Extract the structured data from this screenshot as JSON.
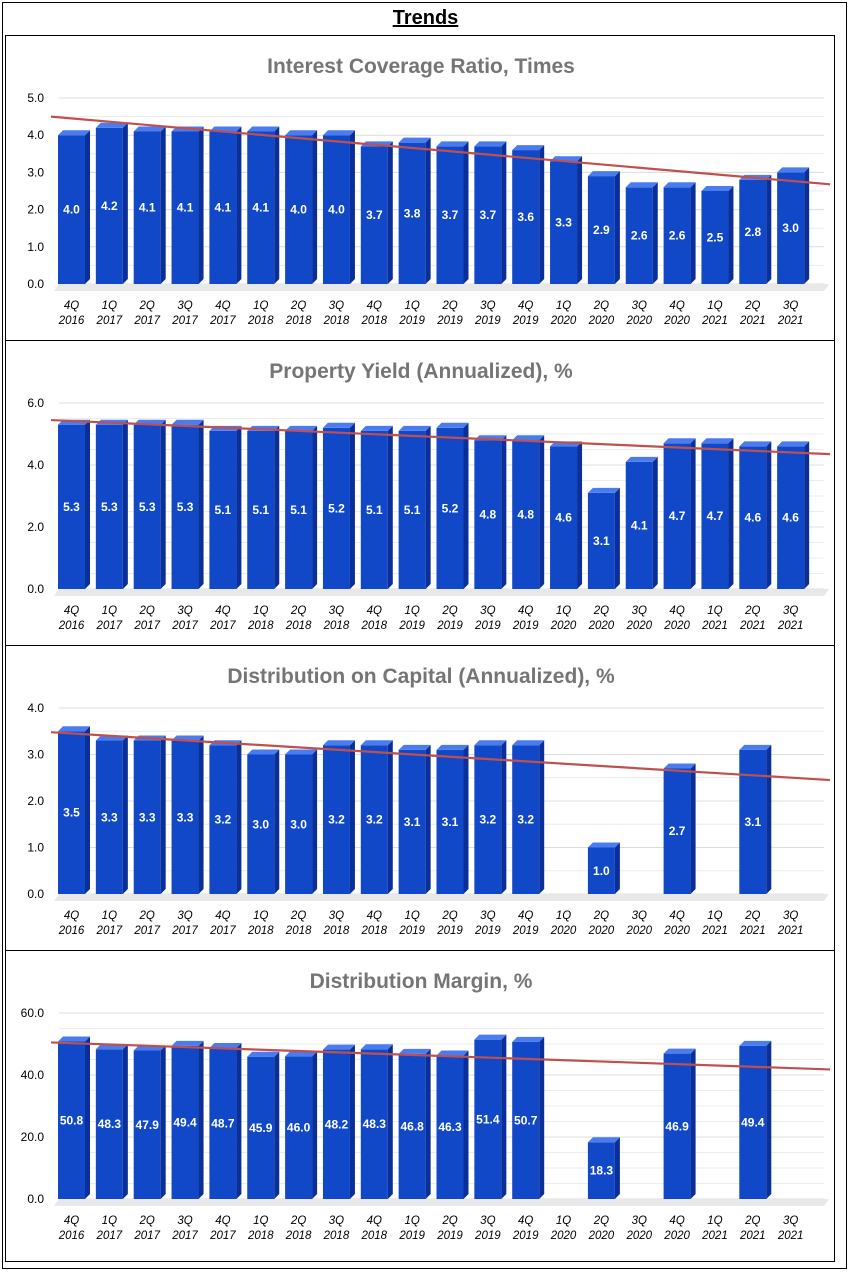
{
  "page_title": "Trends",
  "colors": {
    "bar_front": "#1148c8",
    "bar_side": "#0a2f99",
    "bar_top": "#4a7cf0",
    "trendline": "#c0504d",
    "grid": "#dcdcdc",
    "title": "#757575"
  },
  "chart_data": [
    {
      "type": "bar",
      "title": "Interest Coverage Ratio, Times",
      "categories": [
        "4Q 2016",
        "1Q 2017",
        "2Q 2017",
        "3Q 2017",
        "4Q 2017",
        "1Q 2018",
        "2Q 2018",
        "3Q 2018",
        "4Q 2018",
        "1Q 2019",
        "2Q 2019",
        "3Q 2019",
        "4Q 2019",
        "1Q 2020",
        "2Q 2020",
        "3Q 2020",
        "4Q 2020",
        "1Q 2021",
        "2Q 2021",
        "3Q 2021"
      ],
      "values": [
        4.0,
        4.2,
        4.1,
        4.1,
        4.1,
        4.1,
        4.0,
        4.0,
        3.7,
        3.8,
        3.7,
        3.7,
        3.6,
        3.3,
        2.9,
        2.6,
        2.6,
        2.5,
        2.8,
        3.0
      ],
      "labels": [
        "4.0",
        "4.2",
        "4.1",
        "4.1",
        "4.1",
        "4.1",
        "4.0",
        "4.0",
        "3.7",
        "3.8",
        "3.7",
        "3.7",
        "3.6",
        "3.3",
        "2.9",
        "2.6",
        "2.6",
        "2.5",
        "2.8",
        "3.0"
      ],
      "ylim": [
        0,
        5
      ],
      "yticks": [
        "0.0",
        "1.0",
        "2.0",
        "3.0",
        "4.0",
        "5.0"
      ],
      "trendline": {
        "start": 4.5,
        "end": 2.68
      },
      "grid": true
    },
    {
      "type": "bar",
      "title": "Property Yield (Annualized), %",
      "categories": [
        "4Q 2016",
        "1Q 2017",
        "2Q 2017",
        "3Q 2017",
        "4Q 2017",
        "1Q 2018",
        "2Q 2018",
        "3Q 2018",
        "4Q 2018",
        "1Q 2019",
        "2Q 2019",
        "3Q 2019",
        "4Q 2019",
        "1Q 2020",
        "2Q 2020",
        "3Q 2020",
        "4Q 2020",
        "1Q 2021",
        "2Q 2021",
        "3Q 2021"
      ],
      "values": [
        5.3,
        5.3,
        5.3,
        5.3,
        5.1,
        5.1,
        5.1,
        5.2,
        5.1,
        5.1,
        5.2,
        4.8,
        4.8,
        4.6,
        3.1,
        4.1,
        4.7,
        4.7,
        4.6,
        4.6
      ],
      "labels": [
        "5.3",
        "5.3",
        "5.3",
        "5.3",
        "5.1",
        "5.1",
        "5.1",
        "5.2",
        "5.1",
        "5.1",
        "5.2",
        "4.8",
        "4.8",
        "4.6",
        "3.1",
        "4.1",
        "4.7",
        "4.7",
        "4.6",
        "4.6"
      ],
      "ylim": [
        0,
        6
      ],
      "yticks": [
        "0.0",
        "2.0",
        "4.0",
        "6.0"
      ],
      "trendline": {
        "start": 5.45,
        "end": 4.35
      },
      "grid": true
    },
    {
      "type": "bar",
      "title": "Distribution on Capital (Annualized), %",
      "categories": [
        "4Q 2016",
        "1Q 2017",
        "2Q 2017",
        "3Q 2017",
        "4Q 2017",
        "1Q 2018",
        "2Q 2018",
        "3Q 2018",
        "4Q 2018",
        "1Q 2019",
        "2Q 2019",
        "3Q 2019",
        "4Q 2019",
        "1Q 2020",
        "2Q 2020",
        "3Q 2020",
        "4Q 2020",
        "1Q 2021",
        "2Q 2021",
        "3Q 2021"
      ],
      "values": [
        3.5,
        3.3,
        3.3,
        3.3,
        3.2,
        3.0,
        3.0,
        3.2,
        3.2,
        3.1,
        3.1,
        3.2,
        3.2,
        null,
        1.0,
        null,
        2.7,
        null,
        3.1,
        null
      ],
      "labels": [
        "3.5",
        "3.3",
        "3.3",
        "3.3",
        "3.2",
        "3.0",
        "3.0",
        "3.2",
        "3.2",
        "3.1",
        "3.1",
        "3.2",
        "3.2",
        "",
        "1.0",
        "",
        "2.7",
        "",
        "3.1",
        ""
      ],
      "ylim": [
        0,
        4
      ],
      "yticks": [
        "0.0",
        "1.0",
        "2.0",
        "3.0",
        "4.0"
      ],
      "trendline": {
        "start": 3.48,
        "end": 2.45
      },
      "grid": true
    },
    {
      "type": "bar",
      "title": "Distribution Margin, %",
      "categories": [
        "4Q 2016",
        "1Q 2017",
        "2Q 2017",
        "3Q 2017",
        "4Q 2017",
        "1Q 2018",
        "2Q 2018",
        "3Q 2018",
        "4Q 2018",
        "1Q 2019",
        "2Q 2019",
        "3Q 2019",
        "4Q 2019",
        "1Q 2020",
        "2Q 2020",
        "3Q 2020",
        "4Q 2020",
        "1Q 2021",
        "2Q 2021",
        "3Q 2021"
      ],
      "values": [
        50.8,
        48.3,
        47.9,
        49.4,
        48.7,
        45.9,
        46.0,
        48.2,
        48.3,
        46.8,
        46.3,
        51.4,
        50.7,
        null,
        18.3,
        null,
        46.9,
        null,
        49.4,
        null
      ],
      "labels": [
        "50.8",
        "48.3",
        "47.9",
        "49.4",
        "48.7",
        "45.9",
        "46.0",
        "48.2",
        "48.3",
        "46.8",
        "46.3",
        "51.4",
        "50.7",
        "",
        "18.3",
        "",
        "46.9",
        "",
        "49.4",
        ""
      ],
      "ylim": [
        0,
        60
      ],
      "yticks": [
        "0.0",
        "20.0",
        "40.0",
        "60.0"
      ],
      "trendline": {
        "start": 50.5,
        "end": 41.8
      },
      "grid": true
    }
  ]
}
